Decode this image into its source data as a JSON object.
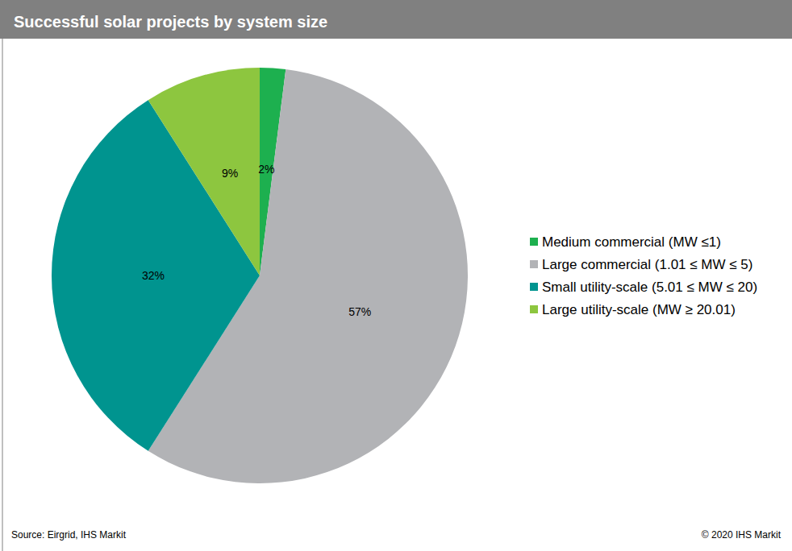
{
  "chart_data": {
    "type": "pie",
    "title": "Successful solar projects by system size",
    "categories": [
      "Medium commercial (MW ≤1)",
      "Large commercial (1.01 ≤ MW ≤ 5)",
      "Small utility-scale (5.01 ≤ MW ≤ 20)",
      "Large utility-scale (MW ≥ 20.01)"
    ],
    "values": [
      2,
      57,
      32,
      9
    ],
    "value_labels": [
      "2%",
      "57%",
      "32%",
      "9%"
    ],
    "colors": [
      "#1db04f",
      "#b2b3b6",
      "#00948f",
      "#8dc63f"
    ],
    "data_labels": true,
    "legend": "right",
    "annotations": [
      "Source: Eirgrid, IHS Markit",
      "© 2020 IHS Markit"
    ]
  }
}
